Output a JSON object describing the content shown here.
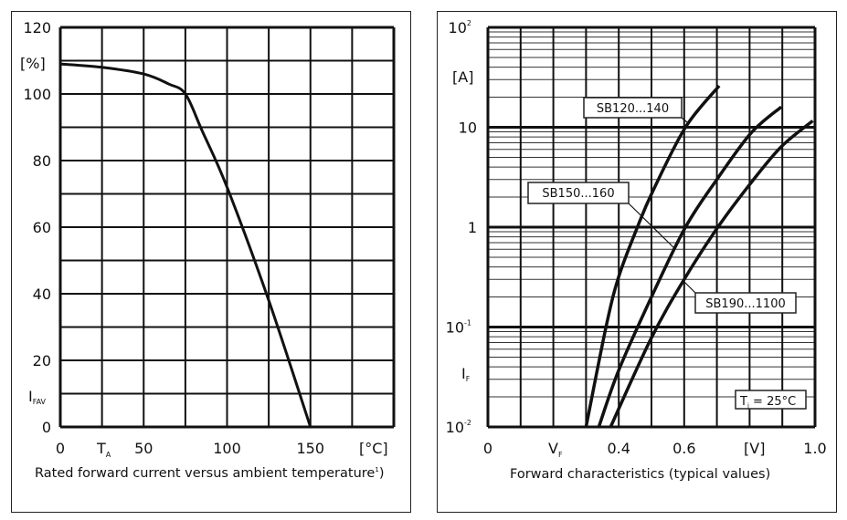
{
  "chart_data": [
    {
      "type": "line",
      "title": "Rated forward current versus ambient temperature",
      "title_sup": "1",
      "title_tail": ")",
      "xlabel": "T",
      "xlabel_sub": "A",
      "xunit": "[°C]",
      "ylabel": "I",
      "ylabel_sub": "FAV",
      "yunit": "[%]",
      "xlim": [
        0,
        200
      ],
      "ylim": [
        0,
        120
      ],
      "grid": true,
      "x_ticks": [
        "0",
        "50",
        "100",
        "150"
      ],
      "y_ticks": [
        "0",
        "20",
        "40",
        "60",
        "80",
        "100",
        "120"
      ],
      "series": [
        {
          "x": [
            0,
            25,
            50,
            65,
            75,
            85,
            100,
            125,
            150
          ],
          "y": [
            109,
            108,
            106,
            103,
            100,
            89,
            72,
            38,
            0
          ]
        }
      ]
    },
    {
      "type": "line",
      "title": "Forward characteristics (typical values)",
      "xlabel": "V",
      "xlabel_sub": "F",
      "xunit": "[V]",
      "ylabel": "I",
      "ylabel_sub": "F",
      "yunit": "[A]",
      "xlim": [
        0,
        1.0
      ],
      "ylim": [
        0.01,
        100
      ],
      "yscale": "log",
      "grid": true,
      "x_ticks": [
        "0",
        "0.4",
        "0.6",
        "1.0"
      ],
      "y_ticks": [
        {
          "base": "10",
          "exp": "-2"
        },
        {
          "base": "10",
          "exp": "-1"
        },
        {
          "base": "1",
          "exp": ""
        },
        {
          "base": "10",
          "exp": ""
        },
        {
          "base": "10",
          "exp": "2"
        }
      ],
      "annotation": {
        "text": "T",
        "sub": "j",
        "tail": " = 25°C"
      },
      "series": [
        {
          "name": "SB120...140",
          "x": [
            0.3,
            0.361,
            0.4,
            0.457,
            0.503,
            0.604,
            0.707
          ],
          "y": [
            0.01,
            0.1,
            0.32,
            1,
            2.25,
            10,
            26
          ]
        },
        {
          "name": "SB150...160",
          "x": [
            0.339,
            0.4,
            0.503,
            0.604,
            0.7,
            0.805,
            0.897
          ],
          "y": [
            0.01,
            0.037,
            0.21,
            1,
            3,
            8.8,
            16
          ]
        },
        {
          "name": "SB190...1100",
          "x": [
            0.375,
            0.499,
            0.6,
            0.703,
            0.805,
            0.897,
            0.993
          ],
          "y": [
            0.01,
            0.077,
            0.3,
            1,
            2.8,
            6.4,
            11.6
          ]
        }
      ]
    }
  ]
}
